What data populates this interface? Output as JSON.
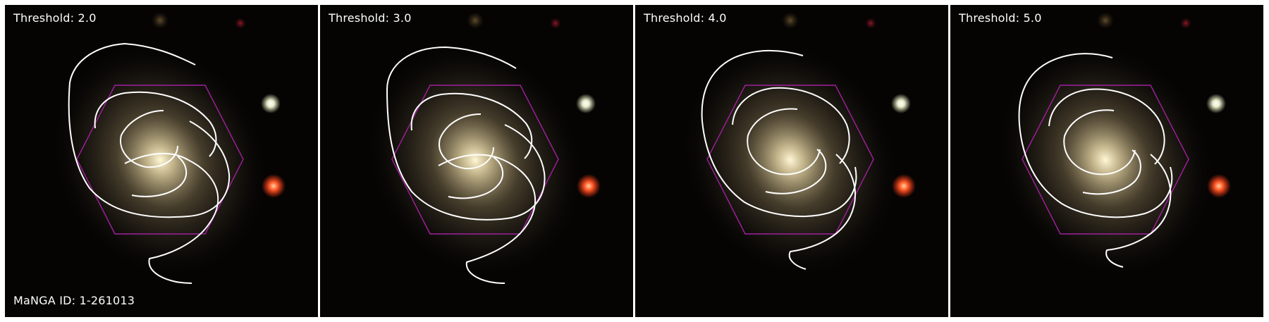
{
  "figure": {
    "panels": [
      {
        "threshold_label": "Threshold: 2.0"
      },
      {
        "threshold_label": "Threshold: 3.0"
      },
      {
        "threshold_label": "Threshold: 4.0"
      },
      {
        "threshold_label": "Threshold: 5.0"
      }
    ],
    "galaxy_id_label": "MaNGA ID: 1-261013"
  },
  "colors": {
    "background": "#050403",
    "contour": "#ffffff",
    "ifu_hexagon": "#a020a0",
    "galaxy_core": "#fff6d8",
    "red_star": "#ff5a28",
    "white_star": "#f4f6e8"
  }
}
